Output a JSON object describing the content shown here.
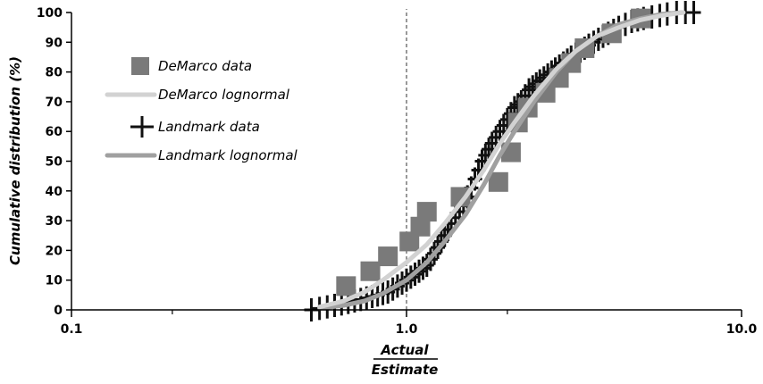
{
  "chart_data": {
    "type": "scatter",
    "xscale": "log",
    "xlim": [
      0.1,
      10.0
    ],
    "ylim": [
      0,
      100
    ],
    "xticks": [
      0.1,
      1.0,
      10.0
    ],
    "xtick_labels": [
      "0.1",
      "1.0",
      "10.0"
    ],
    "yticks": [
      0,
      10,
      20,
      30,
      40,
      50,
      60,
      70,
      80,
      90,
      100
    ],
    "ytick_labels": [
      "0",
      "10",
      "20",
      "30",
      "40",
      "50",
      "60",
      "70",
      "80",
      "90",
      "100"
    ],
    "xlabel_numerator": "Actual",
    "xlabel_denominator": "Estimate",
    "ylabel": "Cumulative distribution (%)",
    "reference_line_x": 1.0,
    "legend": {
      "placement": "upper-left",
      "entries": [
        {
          "label": "DeMarco data",
          "marker": "square",
          "color": "#7a7a7a"
        },
        {
          "label": "DeMarco lognormal",
          "marker": "line",
          "color": "#d2d2d2"
        },
        {
          "label": "Landmark data",
          "marker": "plus",
          "color": "#111111"
        },
        {
          "label": "Landmark lognormal",
          "marker": "line",
          "color": "#a0a0a0"
        }
      ]
    },
    "series": [
      {
        "name": "Landmark data",
        "kind": "scatter",
        "marker": "plus",
        "color": "#111111",
        "x": [
          0.52,
          0.55,
          0.58,
          0.61,
          0.64,
          0.67,
          0.7,
          0.73,
          0.76,
          0.79,
          0.82,
          0.85,
          0.88,
          0.91,
          0.94,
          0.97,
          1.0,
          1.03,
          1.06,
          1.09,
          1.12,
          1.15,
          1.18,
          1.21,
          1.24,
          1.27,
          1.3,
          1.33,
          1.36,
          1.4,
          1.44,
          1.48,
          1.52,
          1.56,
          1.6,
          1.64,
          1.68,
          1.72,
          1.76,
          1.8,
          1.85,
          1.9,
          1.95,
          2.0,
          2.05,
          2.1,
          2.15,
          2.2,
          2.26,
          2.32,
          2.38,
          2.44,
          2.5,
          2.57,
          2.64,
          2.71,
          2.78,
          2.86,
          2.94,
          3.02,
          3.1,
          3.2,
          3.3,
          3.4,
          3.5,
          3.62,
          3.74,
          3.86,
          4.0,
          4.15,
          4.3,
          4.5,
          4.7,
          4.9,
          5.1,
          5.4,
          5.7,
          6.0,
          6.4,
          6.8,
          7.2
        ],
        "y": [
          0,
          0.5,
          1,
          1.5,
          2,
          2.5,
          3,
          3.5,
          4,
          4.5,
          5,
          5.5,
          6,
          7,
          8,
          9,
          10,
          11,
          12,
          13,
          14,
          15,
          17,
          19,
          21,
          23,
          25,
          27,
          29,
          31,
          33,
          35,
          38,
          41,
          44,
          47,
          50,
          52,
          54,
          56,
          58,
          60,
          62,
          64,
          66,
          68,
          69,
          70,
          72,
          74,
          75,
          76,
          77,
          78,
          79,
          80,
          81,
          82,
          83,
          84,
          85,
          86,
          87,
          88,
          89,
          90,
          91,
          92,
          93,
          94,
          95,
          96,
          97,
          97.5,
          98,
          98.5,
          99,
          99.5,
          100,
          100,
          100
        ]
      },
      {
        "name": "DeMarco data",
        "kind": "scatter",
        "marker": "square",
        "color": "#7a7a7a",
        "x": [
          0.66,
          0.78,
          0.88,
          1.02,
          1.1,
          1.15,
          1.45,
          1.88,
          2.05,
          2.15,
          2.3,
          2.6,
          2.85,
          3.1,
          3.4,
          4.1,
          5.0
        ],
        "y": [
          8,
          13,
          18,
          23,
          28,
          33,
          38,
          43,
          53,
          63,
          68,
          73,
          78,
          83,
          88,
          93,
          98
        ]
      },
      {
        "name": "DeMarco lognormal",
        "kind": "line",
        "color": "#d2d2d2",
        "x": [
          0.55,
          0.65,
          0.75,
          0.85,
          1.0,
          1.15,
          1.3,
          1.5,
          1.7,
          1.9,
          2.1,
          2.4,
          2.8,
          3.2,
          3.7,
          4.3,
          5.0,
          5.8,
          6.7
        ],
        "y": [
          1,
          3,
          6,
          10,
          16,
          22,
          29,
          38,
          47,
          56,
          63,
          72,
          81,
          87,
          92,
          95,
          97.5,
          99,
          100
        ]
      },
      {
        "name": "Landmark lognormal",
        "kind": "line",
        "color": "#a0a0a0",
        "x": [
          0.55,
          0.65,
          0.75,
          0.85,
          1.0,
          1.15,
          1.3,
          1.5,
          1.7,
          1.9,
          2.1,
          2.4,
          2.8,
          3.2,
          3.7,
          4.3,
          5.0,
          5.8,
          6.7
        ],
        "y": [
          0.5,
          1.5,
          3,
          5.5,
          10,
          16,
          23,
          32,
          42,
          52,
          60,
          70,
          80,
          87,
          92,
          96,
          98,
          99.5,
          100
        ]
      }
    ]
  }
}
